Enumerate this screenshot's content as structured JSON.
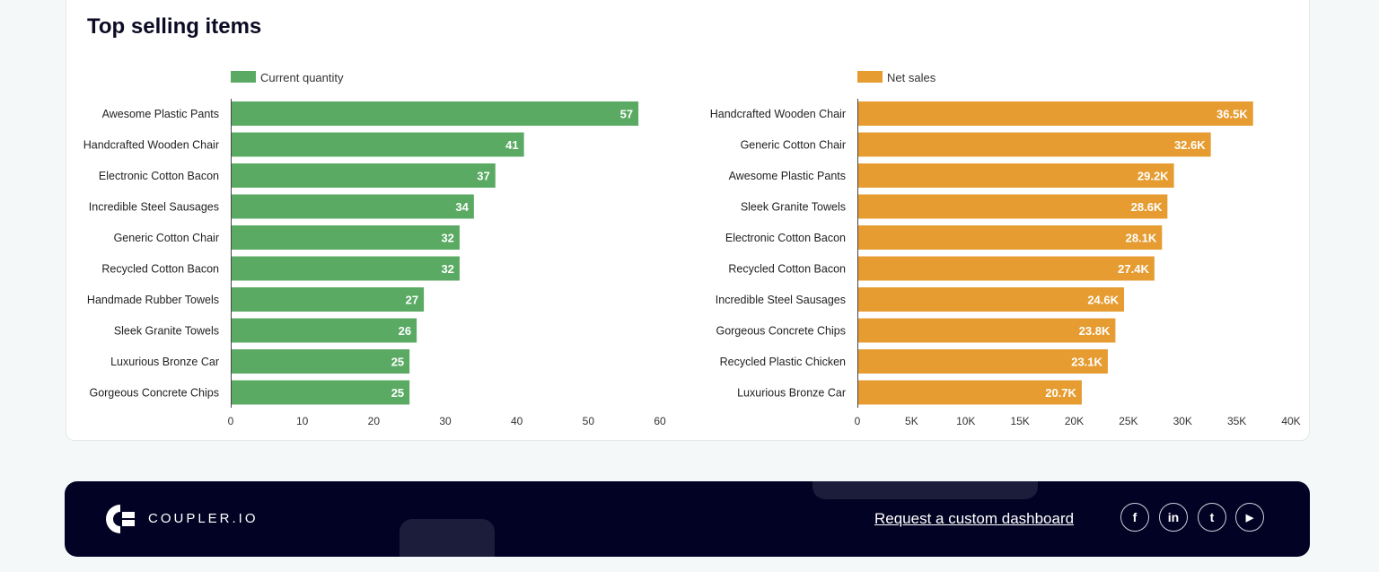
{
  "title": "Top selling items",
  "chart_data": [
    {
      "type": "bar",
      "orientation": "horizontal",
      "legend": "Current quantity",
      "legend_position": "top-left",
      "color": "#5aaa63",
      "categories": [
        "Awesome Plastic Pants",
        "Handcrafted Wooden Chair",
        "Electronic Cotton Bacon",
        "Incredible Steel Sausages",
        "Generic Cotton Chair",
        "Recycled Cotton Bacon",
        "Handmade Rubber Towels",
        "Sleek Granite Towels",
        "Luxurious Bronze Car",
        "Gorgeous Concrete Chips"
      ],
      "values": [
        57,
        41,
        37,
        34,
        32,
        32,
        27,
        26,
        25,
        25
      ],
      "data_labels": [
        "57",
        "41",
        "37",
        "34",
        "32",
        "32",
        "27",
        "26",
        "25",
        "25"
      ],
      "xlim": [
        0,
        60
      ],
      "ticks": [
        0,
        10,
        20,
        30,
        40,
        50,
        60
      ],
      "tick_labels": [
        "0",
        "10",
        "20",
        "30",
        "40",
        "50",
        "60"
      ],
      "grid": false
    },
    {
      "type": "bar",
      "orientation": "horizontal",
      "legend": "Net sales",
      "legend_position": "top-left",
      "color": "#e69c31",
      "categories": [
        "Handcrafted Wooden Chair",
        "Generic Cotton Chair",
        "Awesome Plastic Pants",
        "Sleek Granite Towels",
        "Electronic Cotton Bacon",
        "Recycled Cotton Bacon",
        "Incredible Steel Sausages",
        "Gorgeous Concrete Chips",
        "Recycled Plastic Chicken",
        "Luxurious Bronze Car"
      ],
      "values": [
        36500,
        32600,
        29200,
        28600,
        28100,
        27400,
        24600,
        23800,
        23100,
        20700
      ],
      "data_labels": [
        "36.5K",
        "32.6K",
        "29.2K",
        "28.6K",
        "28.1K",
        "27.4K",
        "24.6K",
        "23.8K",
        "23.1K",
        "20.7K"
      ],
      "xlim": [
        0,
        40000
      ],
      "ticks": [
        0,
        5000,
        10000,
        15000,
        20000,
        25000,
        30000,
        35000,
        40000
      ],
      "tick_labels": [
        "0",
        "5K",
        "10K",
        "15K",
        "20K",
        "25K",
        "30K",
        "35K",
        "40K"
      ],
      "grid": false
    }
  ],
  "footer": {
    "brand": "COUPLER.IO",
    "link": "Request a custom dashboard",
    "social": [
      {
        "name": "facebook",
        "glyph": "f"
      },
      {
        "name": "linkedin",
        "glyph": "in"
      },
      {
        "name": "twitter",
        "glyph": "t"
      },
      {
        "name": "youtube",
        "glyph": "▶"
      }
    ]
  }
}
